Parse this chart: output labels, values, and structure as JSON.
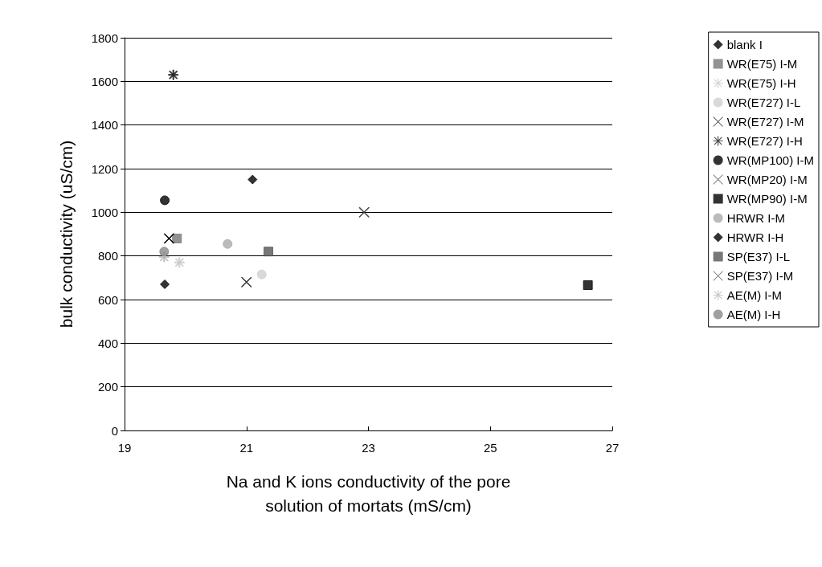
{
  "chart_data": {
    "type": "scatter",
    "xlabel": "Na and K ions conductivity of the pore\nsolution of mortats (mS/cm)",
    "ylabel": "bulk conductivity (uS/cm)",
    "xlim": [
      19,
      27
    ],
    "xticks": [
      19,
      21,
      23,
      25,
      27
    ],
    "ylim": [
      0,
      1800
    ],
    "yticks": [
      0,
      200,
      400,
      600,
      800,
      1000,
      1200,
      1400,
      1600,
      1800
    ],
    "grid": "y",
    "legend": "right",
    "series": [
      {
        "name": "blank I",
        "color": "#000000",
        "marker": "diamond",
        "x": [
          19.66
        ],
        "values": [
          670
        ]
      },
      {
        "name": "WR(E75) I-M",
        "color": "#777777",
        "marker": "square",
        "x": [
          19.86
        ],
        "values": [
          880
        ]
      },
      {
        "name": "WR(E75) I-H",
        "color": "#cccccc",
        "marker": "star",
        "x": [
          19.9
        ],
        "values": [
          770
        ]
      },
      {
        "name": "WR(E727) I-L",
        "color": "#d0d0d0",
        "marker": "circle",
        "x": [
          21.25
        ],
        "values": [
          715
        ]
      },
      {
        "name": "WR(E727) I-M",
        "color": "#000000",
        "marker": "cross",
        "x": [
          19.73
        ],
        "values": [
          880
        ]
      },
      {
        "name": "WR(E727) I-H",
        "color": "#222222",
        "marker": "star",
        "x": [
          19.8
        ],
        "values": [
          1630
        ]
      },
      {
        "name": "WR(MP100) I-M",
        "color": "#000000",
        "marker": "circle",
        "x": [
          19.66
        ],
        "values": [
          1055
        ]
      },
      {
        "name": "WR(MP20) I-M",
        "color": "#333333",
        "marker": "cross",
        "x": [
          21.0
        ],
        "values": [
          680
        ]
      },
      {
        "name": "WR(MP90) I-M",
        "color": "#000000",
        "marker": "square",
        "x": [
          26.6
        ],
        "values": [
          666
        ]
      },
      {
        "name": "HRWR I-M",
        "color": "#aaaaaa",
        "marker": "circle",
        "x": [
          20.69
        ],
        "values": [
          855
        ]
      },
      {
        "name": "HRWR I-H",
        "color": "#000000",
        "marker": "diamond",
        "x": [
          21.1
        ],
        "values": [
          1150
        ]
      },
      {
        "name": "SP(E37) I-L",
        "color": "#555555",
        "marker": "square",
        "x": [
          21.36
        ],
        "values": [
          820
        ]
      },
      {
        "name": "SP(E37) I-M",
        "color": "#444444",
        "marker": "cross",
        "x": [
          22.93
        ],
        "values": [
          1000
        ]
      },
      {
        "name": "AE(M) I-M",
        "color": "#bbbbbb",
        "marker": "star",
        "x": [
          19.65
        ],
        "values": [
          795
        ]
      },
      {
        "name": "AE(M) I-H",
        "color": "#888888",
        "marker": "circle",
        "x": [
          19.65
        ],
        "values": [
          820
        ]
      }
    ]
  }
}
